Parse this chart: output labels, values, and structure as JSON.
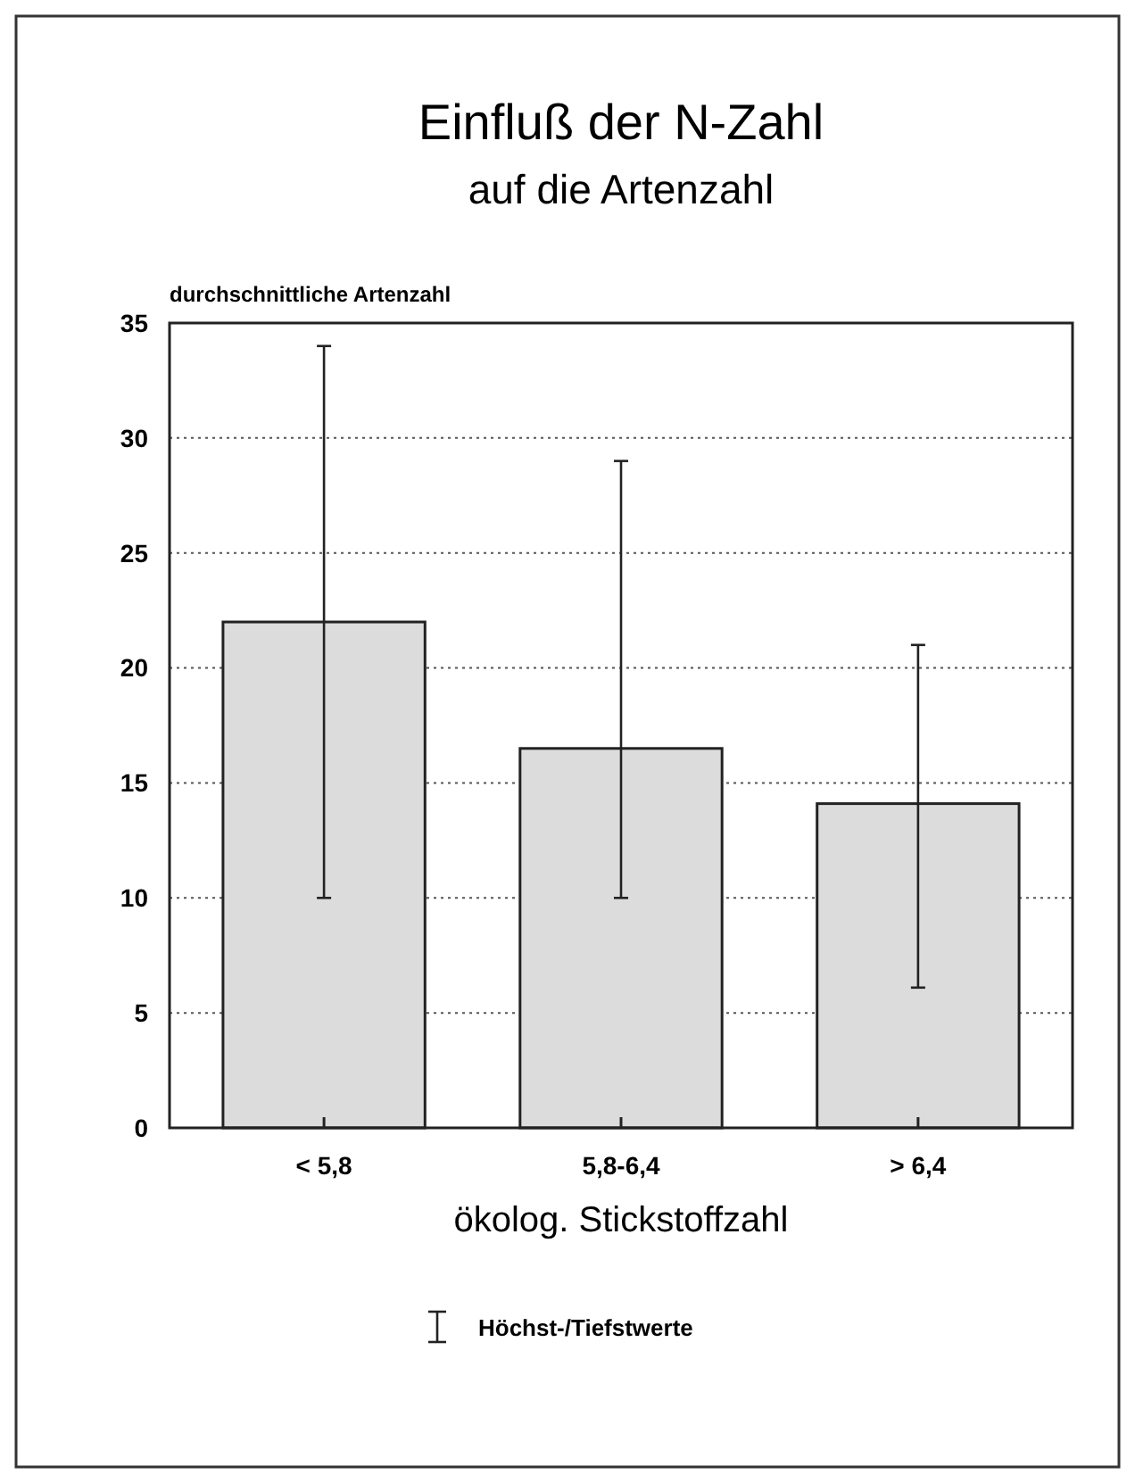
{
  "chart_data": {
    "type": "bar",
    "title": "Einfluß der N-Zahl",
    "subtitle": "auf die Artenzahl",
    "ylabel": "durchschnittliche Artenzahl",
    "xlabel": "ökolog. Stickstoffzahl",
    "categories": [
      "< 5,8",
      "5,8-6,4",
      "> 6,4"
    ],
    "values": [
      22,
      16.5,
      14.1
    ],
    "errors": [
      [
        10,
        34
      ],
      [
        10,
        29
      ],
      [
        6.1,
        21
      ]
    ],
    "color": "#dcdcdc",
    "ylim": [
      0,
      35
    ],
    "yticks": [
      0,
      5,
      10,
      15,
      20,
      25,
      30,
      35
    ],
    "grid": "y",
    "annotations": [
      "Höchst-/Tiefstwerte"
    ]
  }
}
